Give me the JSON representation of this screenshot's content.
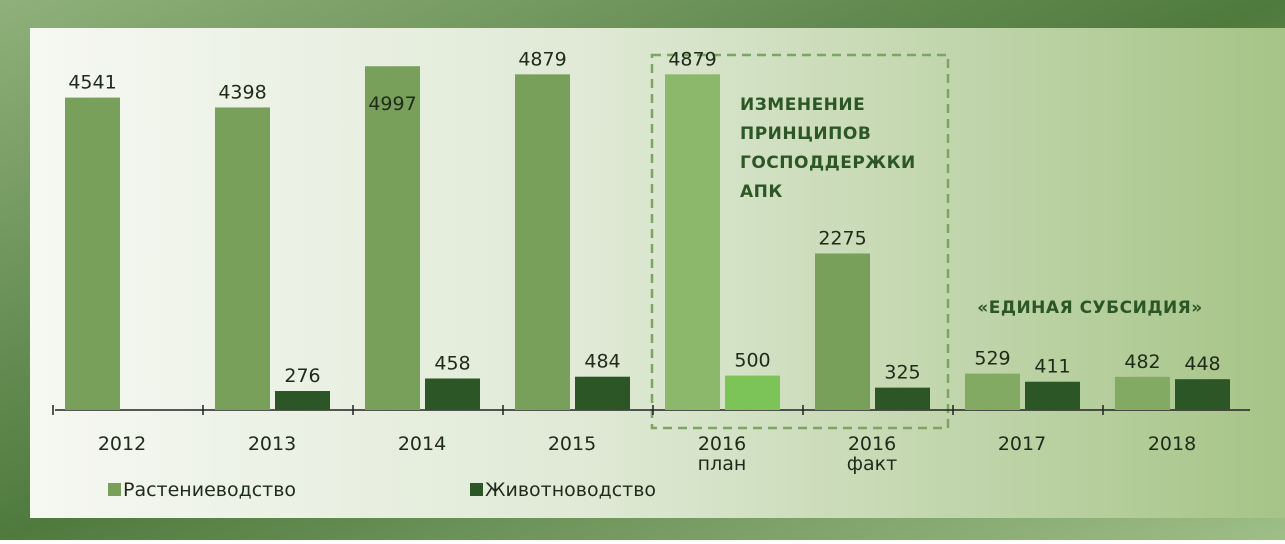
{
  "chart_data": {
    "type": "bar",
    "categories": [
      "2012",
      "2013",
      "2014",
      "2015",
      "2016\nплан",
      "2016\nфакт",
      "2017",
      "2018"
    ],
    "series": [
      {
        "name": "Растениеводство",
        "color": "#78a05a",
        "colors": [
          "#78a05a",
          "#78a05a",
          "#78a05a",
          "#78a05a",
          "#8cb86c",
          "#78a05a",
          "#82aa62",
          "#82aa62"
        ],
        "values": [
          4541,
          4398,
          4997,
          4879,
          4879,
          2275,
          529,
          482
        ]
      },
      {
        "name": "Животноводство",
        "color": "#2c5626",
        "colors": [
          "#2c5626",
          "#2c5626",
          "#2c5626",
          "#2c5626",
          "#7cc358",
          "#2c5626",
          "#2c5626",
          "#2c5626"
        ],
        "values": [
          null,
          276,
          458,
          484,
          500,
          325,
          411,
          448
        ]
      }
    ],
    "ylim": [
      0,
      5400
    ],
    "annotations": [
      [
        "ИЗМЕНЕНИЕ",
        "ПРИНЦИПОВ",
        "ГОСПОДДЕРЖКИ",
        "АПК"
      ],
      [
        "«ЕДИНАЯ СУБСИДИЯ»"
      ]
    ]
  }
}
